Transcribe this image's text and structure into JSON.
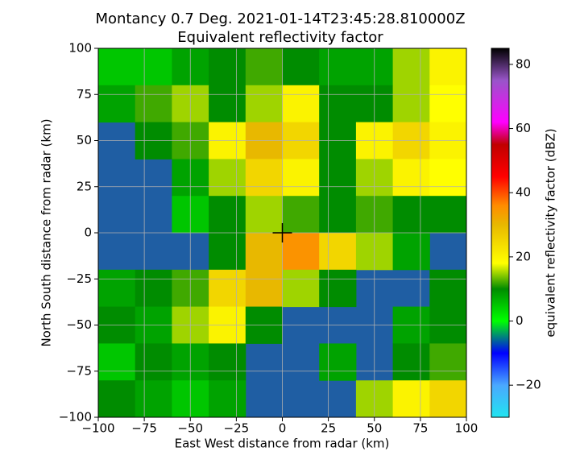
{
  "chart_data": {
    "type": "heatmap",
    "title": "Montancy 0.7 Deg. 2021-01-14T23:45:28.810000Z",
    "subtitle": "Equivalent reflectivity factor",
    "x_label": "East West distance from radar (km)",
    "y_label": "North South distance from radar (km)",
    "colorbar_label": "equivalent reflectivity factor (dBZ)",
    "background_color": "#1f5ea3",
    "grid": true,
    "radar_location": [
      0,
      0
    ],
    "xlim": [
      -100,
      100
    ],
    "ylim": [
      -100,
      100
    ],
    "xticks": [
      {
        "value": -100,
        "label": "−100"
      },
      {
        "value": -75,
        "label": "−75"
      },
      {
        "value": -50,
        "label": "−50"
      },
      {
        "value": -25,
        "label": "−25"
      },
      0,
      25,
      50,
      75,
      100
    ],
    "yticks": [
      {
        "value": -100,
        "label": "−100"
      },
      {
        "value": -75,
        "label": "−75"
      },
      {
        "value": -50,
        "label": "−50"
      },
      {
        "value": -25,
        "label": "−25"
      },
      0,
      25,
      50,
      75,
      100
    ],
    "clim": [
      -30,
      85
    ],
    "cticks": [
      {
        "value": -20,
        "label": "−20"
      },
      0,
      20,
      40,
      60,
      80
    ],
    "colormap": [
      {
        "value": -30,
        "color": "#22e4f0"
      },
      {
        "value": -20,
        "color": "#4aa8ff"
      },
      {
        "value": -10,
        "color": "#0000ff"
      },
      {
        "value": 0,
        "color": "#00ff00"
      },
      {
        "value": 10,
        "color": "#008c00"
      },
      {
        "value": 18,
        "color": "#ffff00"
      },
      {
        "value": 30,
        "color": "#e8b800"
      },
      {
        "value": 36,
        "color": "#ff8c00"
      },
      {
        "value": 45,
        "color": "#ff0000"
      },
      {
        "value": 55,
        "color": "#c00000"
      },
      {
        "value": 62,
        "color": "#ff00ff"
      },
      {
        "value": 75,
        "color": "#9955c9"
      },
      {
        "value": 85,
        "color": "#000000"
      }
    ],
    "x_edges": [
      -100,
      -80,
      -60,
      -40,
      -20,
      0,
      20,
      40,
      60,
      80,
      100
    ],
    "y_edges": [
      100,
      80,
      60,
      40,
      20,
      0,
      -20,
      -40,
      -60,
      -80,
      -100
    ],
    "values": [
      [
        5,
        5,
        8,
        10,
        12,
        10,
        8,
        8,
        15,
        20
      ],
      [
        8,
        12,
        15,
        10,
        15,
        20,
        10,
        10,
        15,
        18
      ],
      [
        null,
        10,
        12,
        20,
        30,
        25,
        10,
        20,
        25,
        20
      ],
      [
        null,
        null,
        8,
        15,
        25,
        20,
        10,
        15,
        20,
        18
      ],
      [
        null,
        null,
        5,
        10,
        15,
        12,
        10,
        12,
        10,
        10
      ],
      [
        null,
        null,
        null,
        10,
        30,
        35,
        25,
        15,
        8,
        null
      ],
      [
        8,
        10,
        12,
        25,
        30,
        15,
        10,
        null,
        null,
        10
      ],
      [
        10,
        8,
        15,
        20,
        10,
        null,
        null,
        null,
        8,
        10
      ],
      [
        5,
        10,
        8,
        10,
        null,
        null,
        8,
        null,
        10,
        12
      ],
      [
        10,
        8,
        5,
        8,
        null,
        null,
        null,
        15,
        20,
        25
      ]
    ]
  }
}
